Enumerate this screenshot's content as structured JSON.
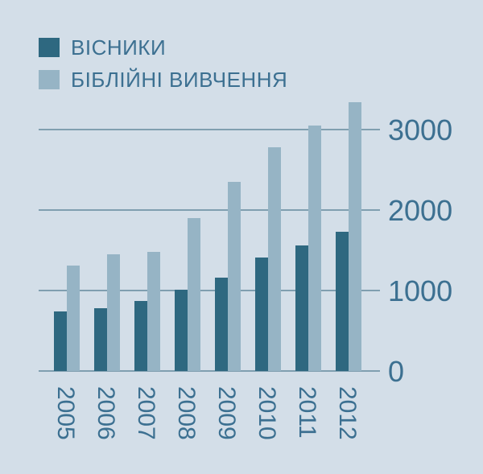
{
  "chart_data": {
    "type": "bar",
    "categories": [
      "2005",
      "2006",
      "2007",
      "2008",
      "2009",
      "2010",
      "2011",
      "2012"
    ],
    "series": [
      {
        "name": "ВІСНИКИ",
        "color": "#2e6880",
        "values": [
          740,
          780,
          870,
          1010,
          1160,
          1410,
          1560,
          1730
        ]
      },
      {
        "name": "БІБЛІЙНІ ВИВЧЕННЯ",
        "color": "#96b4c5",
        "values": [
          1310,
          1450,
          1480,
          1900,
          2350,
          2780,
          3050,
          3340
        ]
      }
    ],
    "y_ticks": [
      "0",
      "1000",
      "2000",
      "3000"
    ],
    "ylim": [
      0,
      3000
    ],
    "grid": true,
    "legend_position": "top-left",
    "y_axis_position": "right",
    "x_tick_rotation": "vertical"
  }
}
